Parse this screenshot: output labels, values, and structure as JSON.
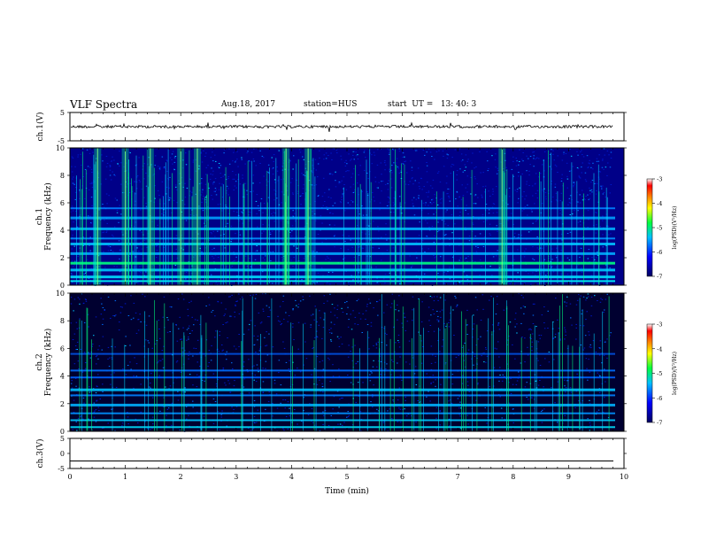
{
  "header": {
    "title": "VLF Spectra",
    "date": "Aug.18, 2017",
    "station": "station=HUS",
    "start_ut": "start  UT =   13: 40: 3"
  },
  "chart_data": [
    {
      "type": "line",
      "panel": "ch1-waveform",
      "ylabel": "ch.1(V)",
      "ylim": [
        -5,
        5
      ],
      "yticks": [
        "5",
        "-5"
      ],
      "description_values": {
        "baseline": 0.0
      }
    },
    {
      "type": "heatmap",
      "panel": "ch1-spectrogram",
      "ylabel_line1": "ch.1",
      "ylabel_line2": "Frequency (kHz)",
      "ylim": [
        0,
        10
      ],
      "yticks": [
        "0",
        "2",
        "4",
        "6",
        "8",
        "10"
      ],
      "bursts_min": [
        0.5,
        1.0,
        1.45,
        2.0,
        2.3,
        3.9,
        4.3,
        7.8
      ],
      "colorbar": {
        "label": "log(PSD)(V²/Hz)",
        "range": [
          -7,
          -3
        ],
        "ticks": [
          "-3",
          "-4",
          "-5",
          "-6",
          "-7"
        ],
        "colors": [
          "#000060",
          "#0000ff",
          "#00c0ff",
          "#00ff40",
          "#ffff00",
          "#ff8000",
          "#ff0000",
          "#ffffff"
        ]
      }
    },
    {
      "type": "heatmap",
      "panel": "ch2-spectrogram",
      "ylabel_line1": "ch.2",
      "ylabel_line2": "Frequency (kHz)",
      "ylim": [
        0,
        10
      ],
      "yticks": [
        "0",
        "2",
        "4",
        "6",
        "8",
        "10"
      ],
      "colorbar": {
        "label": "log(PSD)(V²/Hz)",
        "range": [
          -7,
          -3
        ],
        "ticks": [
          "-3",
          "-4",
          "-5",
          "-6",
          "-7"
        ]
      }
    },
    {
      "type": "line",
      "panel": "ch3-waveform",
      "ylabel": "ch.3(V)",
      "ylim": [
        -5,
        5
      ],
      "yticks": [
        "5",
        "0",
        "-5"
      ],
      "description_values": {
        "baseline": -2.5
      }
    }
  ],
  "x_axis": {
    "label": "Time (min)",
    "range": [
      0,
      10
    ],
    "ticks": [
      "0",
      "1",
      "2",
      "3",
      "4",
      "5",
      "6",
      "7",
      "8",
      "9",
      "10"
    ]
  }
}
